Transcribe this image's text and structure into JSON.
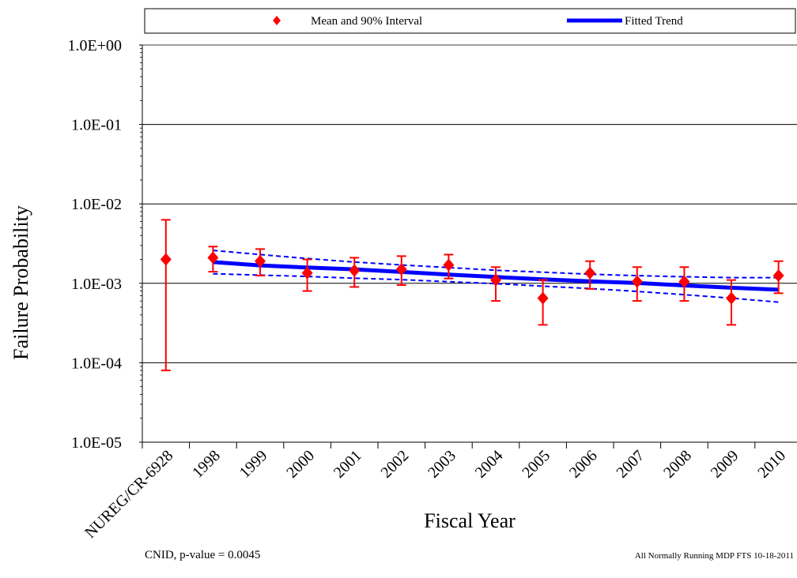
{
  "chart_data": {
    "type": "scatter",
    "title": "",
    "xlabel": "Fiscal Year",
    "ylabel": "Failure Probability",
    "yscale": "log",
    "ylim": [
      1e-05,
      1
    ],
    "y_tick_labels": [
      "1.0E+00",
      "1.0E-01",
      "1.0E-02",
      "1.0E-03",
      "1.0E-04",
      "1.0E-05"
    ],
    "categories": [
      "NUREG/CR-6928",
      "1998",
      "1999",
      "2000",
      "2001",
      "2002",
      "2003",
      "2004",
      "2005",
      "2006",
      "2007",
      "2008",
      "2009",
      "2010"
    ],
    "grid": true,
    "legend": {
      "position": "top",
      "entries": [
        "Mean and 90% Interval",
        "Fitted Trend"
      ]
    },
    "series": [
      {
        "name": "Mean and 90% Interval",
        "marker": "diamond",
        "color": "#ff0000",
        "mean": [
          0.002,
          0.0021,
          0.0019,
          0.00135,
          0.00145,
          0.0015,
          0.0017,
          0.0011,
          0.00065,
          0.00135,
          0.00105,
          0.00105,
          0.00065,
          0.00125
        ],
        "lower": [
          8e-05,
          0.0014,
          0.00125,
          0.0008,
          0.0009,
          0.00095,
          0.00115,
          0.0006,
          0.0003,
          0.00085,
          0.0006,
          0.0006,
          0.0003,
          0.00075
        ],
        "upper": [
          0.0063,
          0.0029,
          0.0027,
          0.002,
          0.0021,
          0.0022,
          0.0023,
          0.0016,
          0.0011,
          0.0019,
          0.0016,
          0.0016,
          0.0011,
          0.0019
        ]
      },
      {
        "name": "Fitted Trend",
        "color": "#0000ff",
        "x": [
          "1998",
          "1999",
          "2000",
          "2001",
          "2002",
          "2003",
          "2004",
          "2005",
          "2006",
          "2007",
          "2008",
          "2009",
          "2010"
        ],
        "values": [
          0.00185,
          0.00168,
          0.00158,
          0.0015,
          0.00139,
          0.00129,
          0.0012,
          0.00112,
          0.00106,
          0.00101,
          0.00094,
          0.00088,
          0.00083
        ],
        "lower": [
          0.00132,
          0.00127,
          0.00122,
          0.00116,
          0.00111,
          0.00105,
          0.00099,
          0.00092,
          0.00086,
          0.00079,
          0.00072,
          0.00065,
          0.00058
        ],
        "upper": [
          0.0026,
          0.0023,
          0.00205,
          0.00185,
          0.0017,
          0.00158,
          0.00146,
          0.00138,
          0.0013,
          0.00125,
          0.00121,
          0.00118,
          0.00118
        ]
      }
    ],
    "annotations": [
      "CNID, p-value = 0.0045",
      "All Normally Running MDP FTS 10-18-2011"
    ]
  }
}
